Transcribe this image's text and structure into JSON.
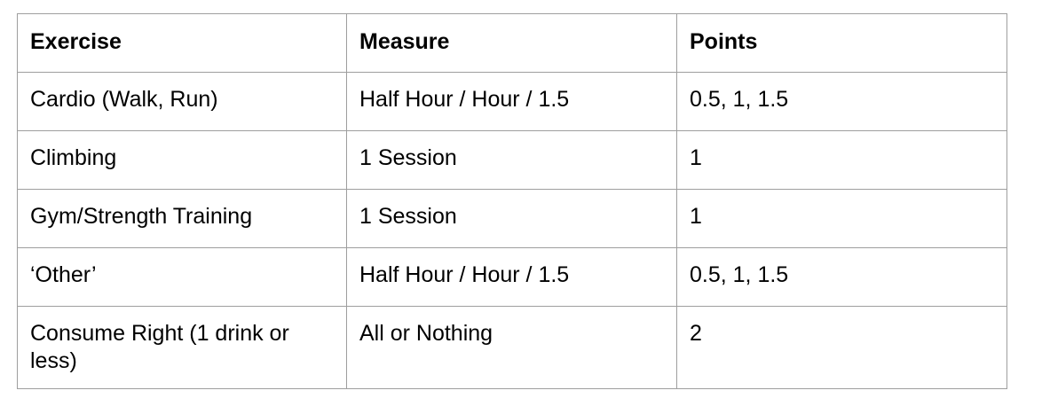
{
  "table": {
    "headers": [
      "Exercise",
      "Measure",
      "Points"
    ],
    "rows": [
      [
        "Cardio (Walk, Run)",
        "Half Hour / Hour / 1.5",
        "0.5, 1, 1.5"
      ],
      [
        "Climbing",
        "1 Session",
        "1"
      ],
      [
        "Gym/Strength Training",
        "1 Session",
        "1"
      ],
      [
        "‘Other’",
        "Half Hour / Hour / 1.5",
        "0.5, 1, 1.5"
      ],
      [
        "Consume Right (1 drink or less)",
        "All or Nothing",
        "2"
      ]
    ]
  }
}
